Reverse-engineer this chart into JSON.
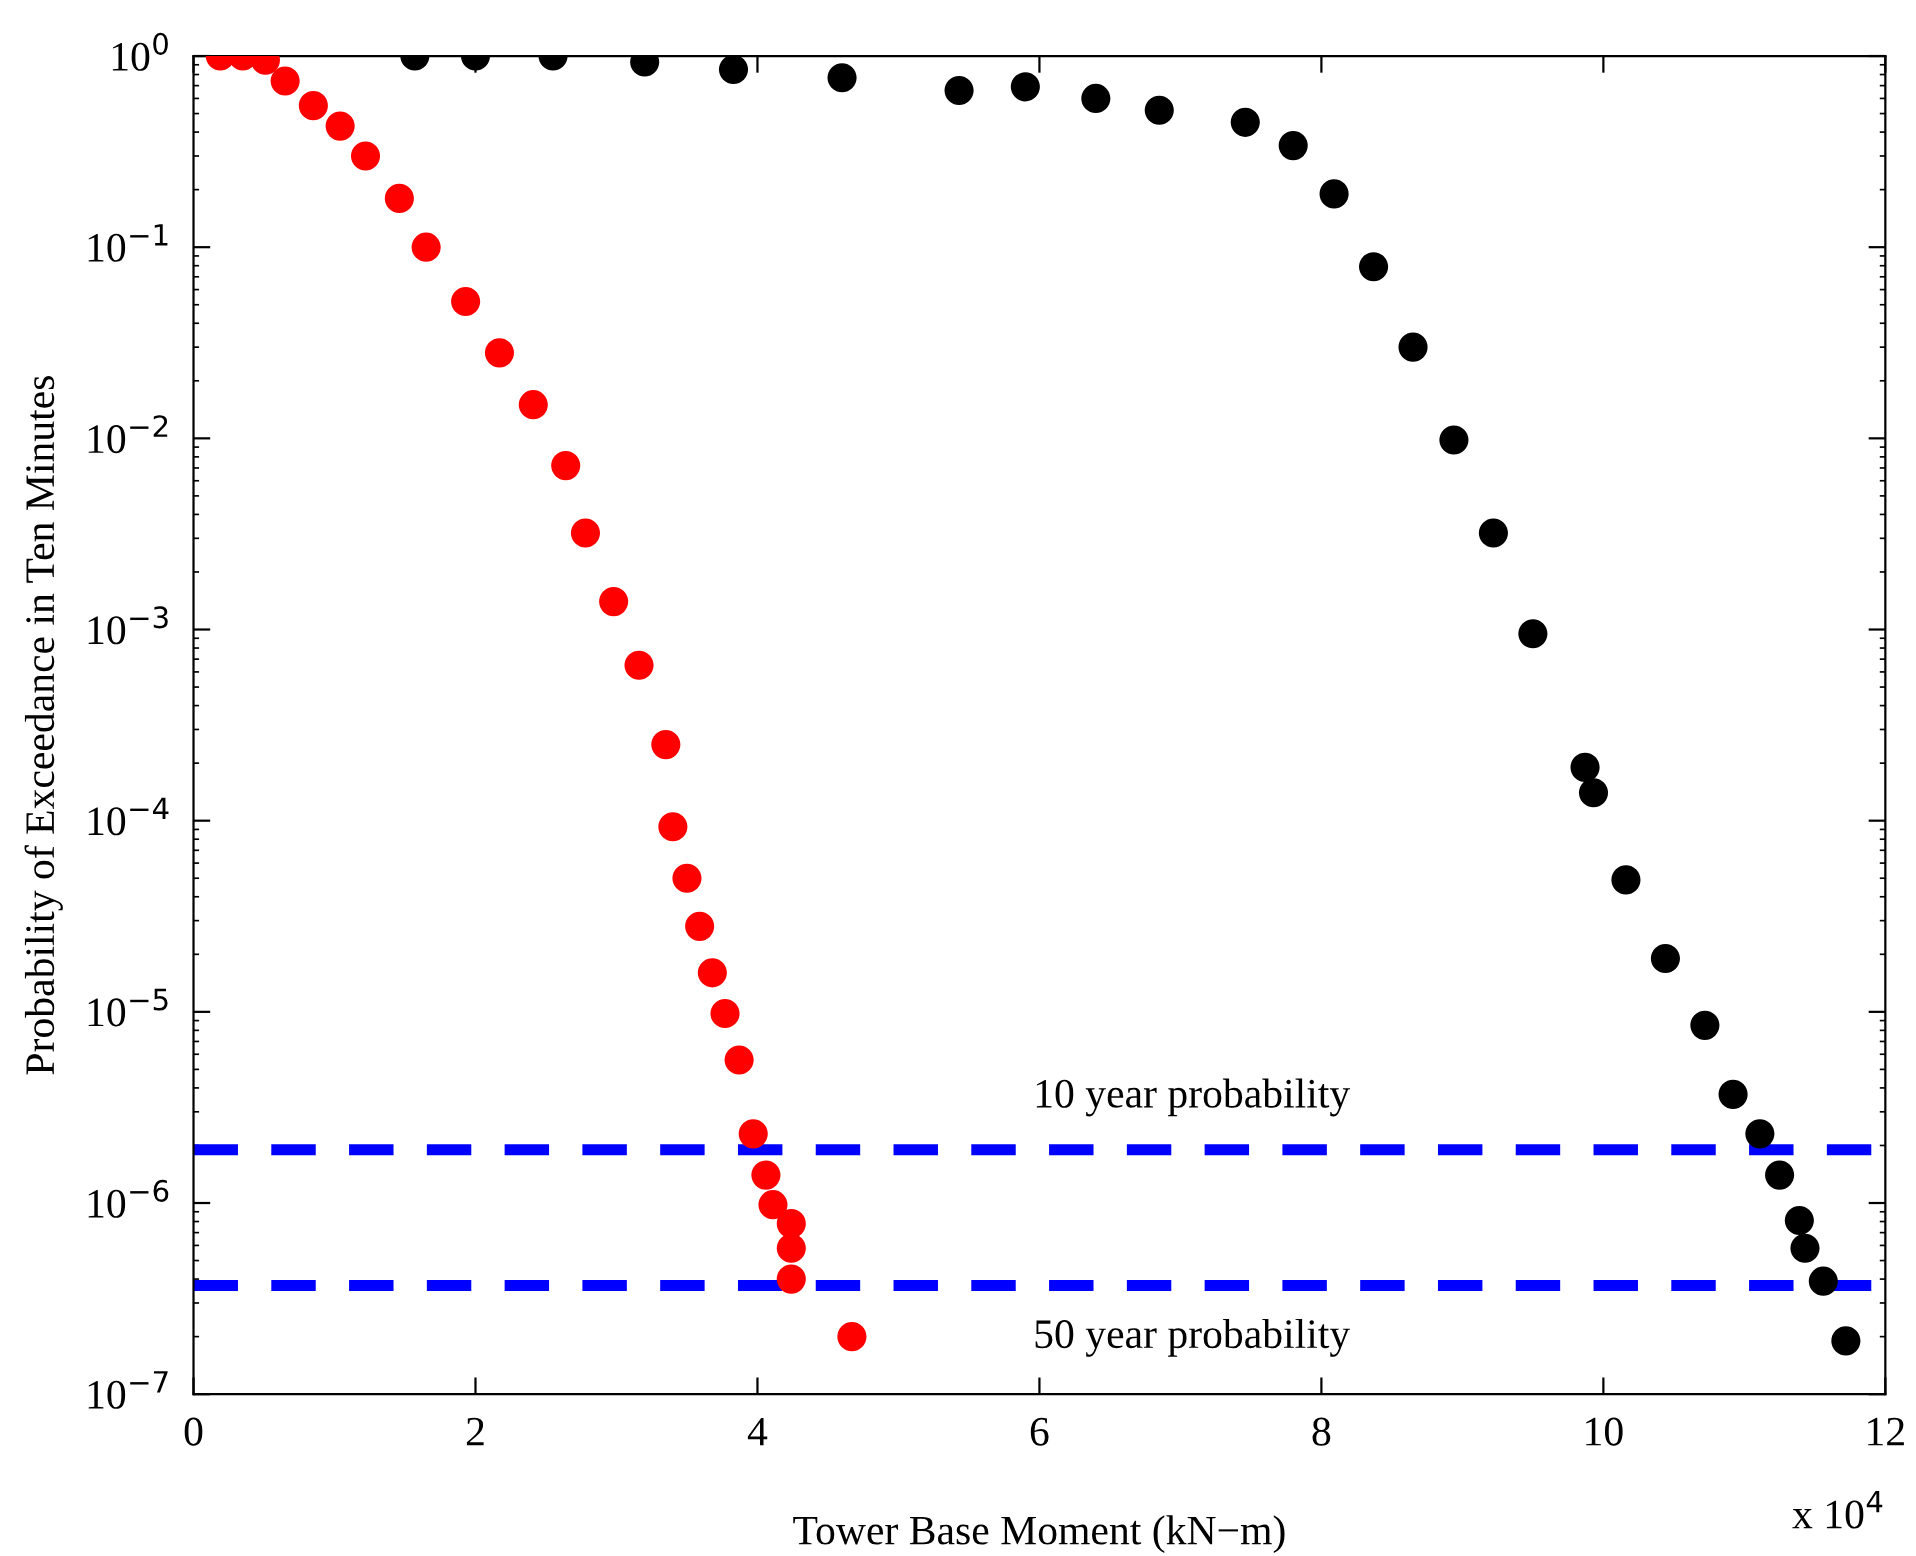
{
  "chart_data": {
    "type": "scatter",
    "xlabel": "Tower Base Moment (kN−m)",
    "ylabel": "Probability of Exceedance in Ten Minutes",
    "log": "y",
    "marker": "circle",
    "grid": false,
    "xlim": [
      0,
      12
    ],
    "xticks": [
      0,
      2,
      4,
      6,
      8,
      10,
      12
    ],
    "ylim": [
      1e-07,
      1
    ],
    "yticks": [
      {
        "value": 1,
        "label": "10$^{0}$"
      },
      {
        "value": 0.1,
        "label": "10$^{−1}$"
      },
      {
        "value": 0.01,
        "label": "10$^{−2}$"
      },
      {
        "value": 0.001,
        "label": "10$^{−3}$"
      },
      {
        "value": 0.0001,
        "label": "10$^{−4}$"
      },
      {
        "value": 1e-05,
        "label": "10$^{−5}$"
      },
      {
        "value": 1e-06,
        "label": "10$^{−6}$"
      },
      {
        "value": 1e-07,
        "label": "10$^{−7}$"
      }
    ],
    "series": [
      {
        "color": "#ff0000",
        "x": [
          0.19,
          0.35,
          0.51,
          0.65,
          0.85,
          1.04,
          1.22,
          1.46,
          1.65,
          1.93,
          2.17,
          2.41,
          2.64,
          2.78,
          2.98,
          3.16,
          3.35,
          3.4,
          3.5,
          3.59,
          3.68,
          3.77,
          3.87,
          3.97,
          4.06,
          4.11,
          4.24,
          4.24,
          4.24,
          4.67
        ],
        "values": [
          1,
          1,
          0.95,
          0.74,
          0.55,
          0.43,
          0.3,
          0.18,
          0.1,
          0.052,
          0.028,
          0.015,
          0.0072,
          0.0032,
          0.0014,
          0.00065,
          0.00025,
          9.3e-05,
          5e-05,
          2.8e-05,
          1.6e-05,
          9.8e-06,
          5.6e-06,
          2.3e-06,
          1.4e-06,
          9.8e-07,
          7.8e-07,
          5.8e-07,
          4e-07,
          2e-07
        ]
      },
      {
        "color": "#000000",
        "x": [
          1.57,
          2.0,
          2.55,
          3.2,
          3.83,
          4.6,
          5.43,
          5.9,
          6.4,
          6.85,
          7.46,
          7.8,
          8.09,
          8.37,
          8.65,
          8.94,
          9.22,
          9.5,
          9.87,
          9.93,
          10.16,
          10.44,
          10.72,
          10.92,
          11.11,
          11.25,
          11.39,
          11.43,
          11.56,
          11.72
        ],
        "values": [
          1,
          1,
          1,
          0.93,
          0.85,
          0.77,
          0.66,
          0.69,
          0.6,
          0.52,
          0.45,
          0.34,
          0.19,
          0.079,
          0.03,
          0.0098,
          0.0032,
          0.00095,
          0.00019,
          0.00014,
          4.9e-05,
          1.9e-05,
          8.5e-06,
          3.7e-06,
          2.3e-06,
          1.4e-06,
          8.1e-07,
          5.8e-07,
          3.9e-07,
          1.9e-07
        ]
      }
    ],
    "ref_lines": [
      {
        "axis": "y",
        "value": 1.9e-06,
        "color": "#0000ff",
        "line_style": "dashed",
        "label": "10 year probability"
      },
      {
        "axis": "y",
        "value": 3.7e-07,
        "color": "#0000ff",
        "line_style": "dashed",
        "label": "50 year probability"
      }
    ],
    "annotations": [
      "x 10$^{4}$"
    ]
  }
}
